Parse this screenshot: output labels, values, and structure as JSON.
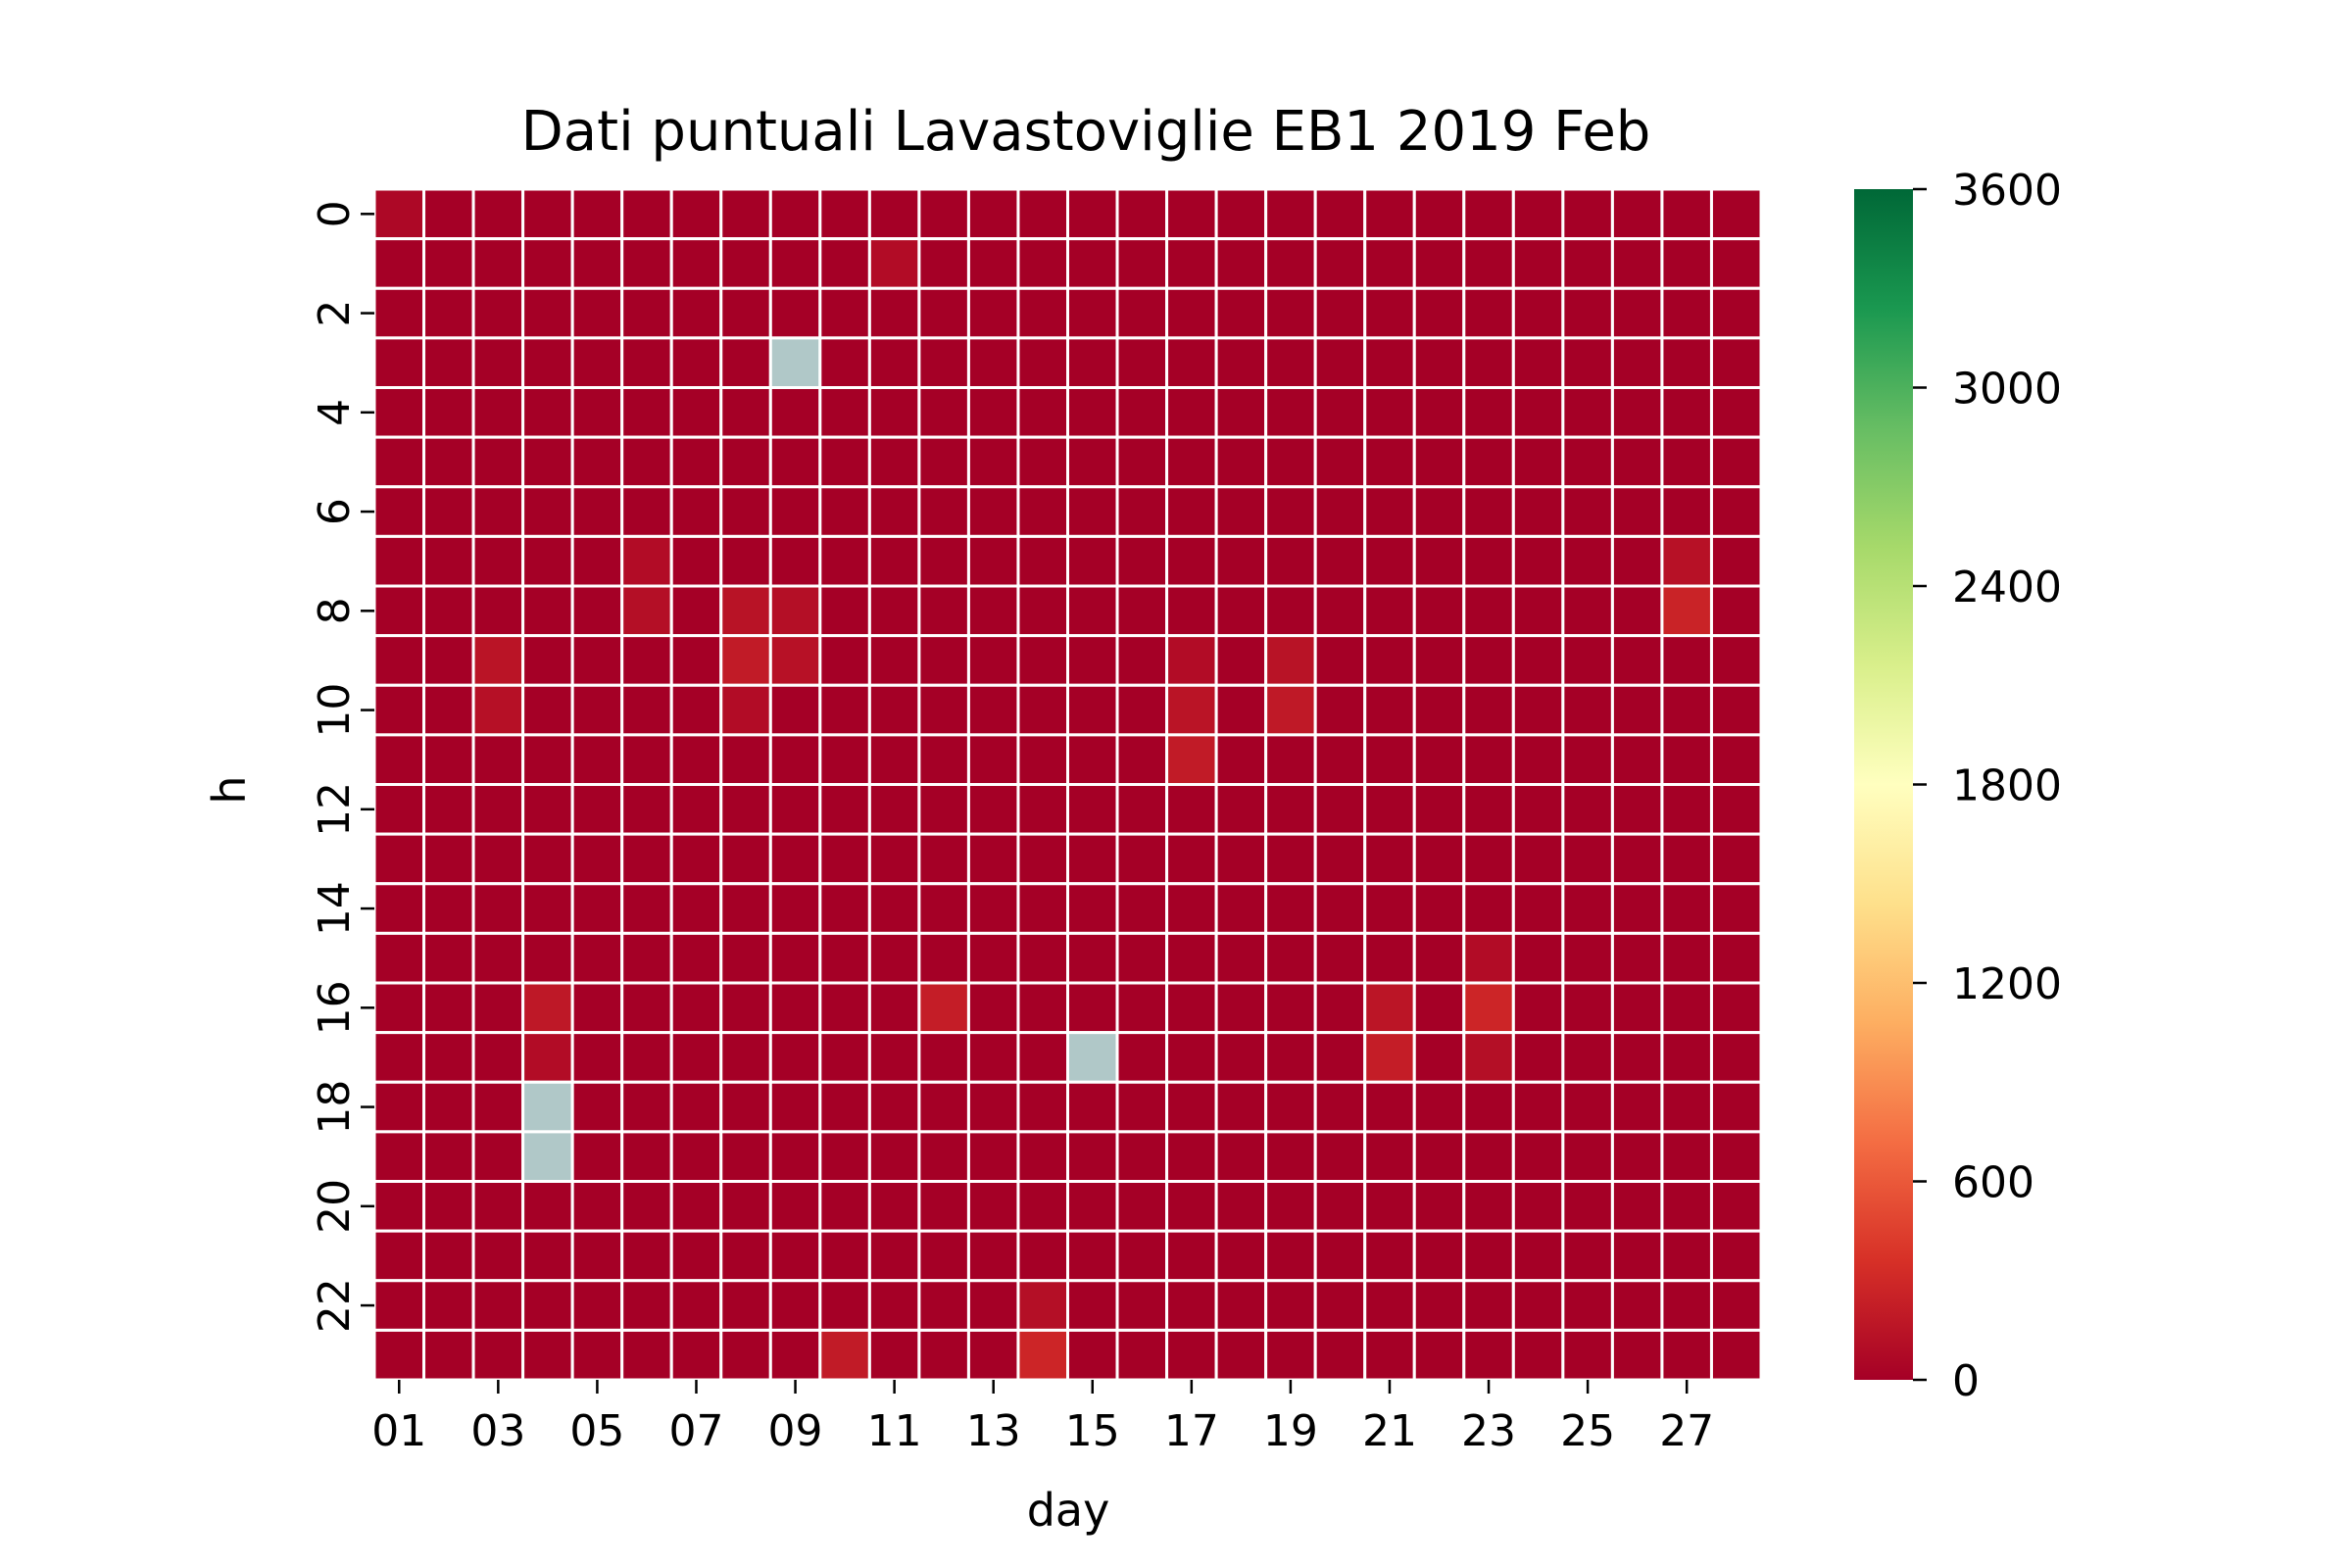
{
  "chart_data": {
    "type": "heatmap",
    "title": "Dati puntuali Lavastoviglie EB1 2019 Feb",
    "xlabel": "day",
    "ylabel": "h",
    "x_categories": [
      "01",
      "02",
      "03",
      "04",
      "05",
      "06",
      "07",
      "08",
      "09",
      "10",
      "11",
      "12",
      "13",
      "14",
      "15",
      "16",
      "17",
      "18",
      "19",
      "20",
      "21",
      "22",
      "23",
      "24",
      "25",
      "26",
      "27",
      "28"
    ],
    "x_tick_labels": [
      "01",
      "03",
      "05",
      "07",
      "09",
      "11",
      "13",
      "15",
      "17",
      "19",
      "21",
      "23",
      "25",
      "27"
    ],
    "y_categories": [
      0,
      1,
      2,
      3,
      4,
      5,
      6,
      7,
      8,
      9,
      10,
      11,
      12,
      13,
      14,
      15,
      16,
      17,
      18,
      19,
      20,
      21,
      22,
      23
    ],
    "y_tick_labels": [
      "0",
      "2",
      "4",
      "6",
      "8",
      "10",
      "12",
      "14",
      "16",
      "18",
      "20",
      "22"
    ],
    "colorbar": {
      "min": 0,
      "max": 3600,
      "ticks": [
        0,
        600,
        1200,
        1800,
        2400,
        3000,
        3600
      ],
      "colormap": "RdYlGn",
      "stops": [
        "#a50026",
        "#d73027",
        "#f46d43",
        "#fdae61",
        "#fee08b",
        "#ffffbf",
        "#d9ef8b",
        "#a6d96a",
        "#66bd63",
        "#1a9850",
        "#006837"
      ]
    },
    "missing_color": "#b0c8c8",
    "base_value": 0,
    "missing_cells": [
      [
        3,
        9
      ],
      [
        17,
        15
      ],
      [
        18,
        4
      ],
      [
        19,
        4
      ]
    ],
    "nonzero_cells": [
      [
        0,
        1,
        60
      ],
      [
        1,
        11,
        90
      ],
      [
        7,
        6,
        90
      ],
      [
        7,
        27,
        130
      ],
      [
        8,
        6,
        110
      ],
      [
        8,
        8,
        140
      ],
      [
        8,
        9,
        110
      ],
      [
        8,
        27,
        260
      ],
      [
        9,
        3,
        150
      ],
      [
        9,
        8,
        200
      ],
      [
        9,
        9,
        130
      ],
      [
        9,
        17,
        90
      ],
      [
        9,
        19,
        140
      ],
      [
        10,
        3,
        120
      ],
      [
        10,
        8,
        90
      ],
      [
        10,
        17,
        150
      ],
      [
        10,
        19,
        190
      ],
      [
        11,
        17,
        200
      ],
      [
        15,
        23,
        90
      ],
      [
        16,
        4,
        180
      ],
      [
        16,
        12,
        220
      ],
      [
        16,
        21,
        160
      ],
      [
        16,
        23,
        280
      ],
      [
        17,
        4,
        90
      ],
      [
        17,
        21,
        220
      ],
      [
        17,
        23,
        110
      ],
      [
        22,
        14,
        110
      ],
      [
        23,
        10,
        200
      ],
      [
        23,
        14,
        280
      ]
    ]
  }
}
